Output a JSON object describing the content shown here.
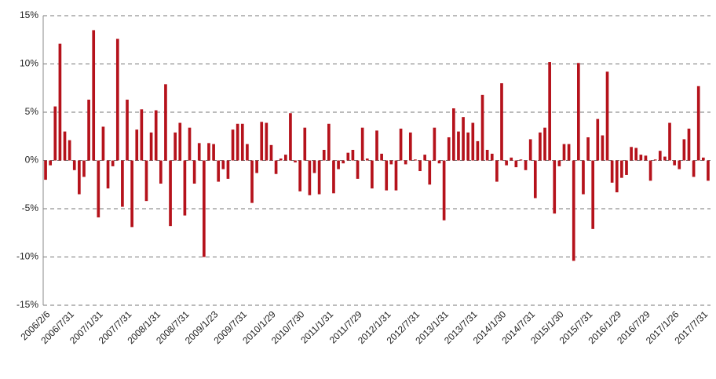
{
  "chart_data": {
    "type": "bar",
    "categories": [
      "2006/2/6",
      null,
      null,
      null,
      null,
      "2006/7/31",
      null,
      null,
      null,
      null,
      null,
      "2007/1/31",
      null,
      null,
      null,
      null,
      null,
      "2007/7/31",
      null,
      null,
      null,
      null,
      null,
      "2008/1/31",
      null,
      null,
      null,
      null,
      null,
      "2008/7/31",
      null,
      null,
      null,
      null,
      null,
      "2009/1/23",
      null,
      null,
      null,
      null,
      null,
      "2009/7/31",
      null,
      null,
      null,
      null,
      null,
      "2010/1/29",
      null,
      null,
      null,
      null,
      null,
      "2010/7/30",
      null,
      null,
      null,
      null,
      null,
      "2011/1/31",
      null,
      null,
      null,
      null,
      null,
      "2011/7/29",
      null,
      null,
      null,
      null,
      null,
      "2012/1/31",
      null,
      null,
      null,
      null,
      null,
      "2012/7/31",
      null,
      null,
      null,
      null,
      null,
      "2013/1/31",
      null,
      null,
      null,
      null,
      null,
      "2013/7/31",
      null,
      null,
      null,
      null,
      null,
      "2014/1/30",
      null,
      null,
      null,
      null,
      null,
      "2014/7/31",
      null,
      null,
      null,
      null,
      null,
      "2015/1/30",
      null,
      null,
      null,
      null,
      null,
      "2015/7/31",
      null,
      null,
      null,
      null,
      null,
      "2016/1/29",
      null,
      null,
      null,
      null,
      null,
      "2016/7/29",
      null,
      null,
      null,
      null,
      null,
      "2017/1/26",
      null,
      null,
      null,
      null,
      null,
      "2017/7/31",
      null
    ],
    "values": [
      -2.0,
      -0.5,
      5.6,
      12.1,
      3.0,
      2.1,
      -1.0,
      -3.5,
      -1.7,
      6.3,
      13.5,
      -5.9,
      3.5,
      -2.9,
      -0.6,
      12.6,
      -4.8,
      6.3,
      -6.9,
      3.2,
      5.3,
      -4.2,
      2.9,
      5.2,
      -2.4,
      7.9,
      -6.8,
      2.9,
      3.9,
      -5.7,
      3.4,
      -2.4,
      1.8,
      -10.0,
      1.8,
      1.7,
      -2.2,
      -0.9,
      -1.9,
      3.2,
      3.8,
      3.8,
      1.7,
      -4.4,
      -1.3,
      4.0,
      3.9,
      1.6,
      -1.4,
      0.2,
      0.6,
      4.9,
      -0.2,
      -3.2,
      3.4,
      -3.6,
      -1.3,
      -3.5,
      1.1,
      3.8,
      -3.4,
      -0.9,
      -0.3,
      0.8,
      1.1,
      -1.9,
      3.4,
      0.2,
      -2.9,
      3.1,
      0.7,
      -3.1,
      -0.4,
      -3.1,
      3.3,
      -0.4,
      2.9,
      0.1,
      -1.1,
      0.6,
      -2.5,
      3.4,
      -0.3,
      -6.2,
      2.4,
      5.4,
      3.0,
      4.5,
      2.9,
      3.9,
      2.0,
      6.8,
      1.1,
      0.7,
      -2.2,
      8.0,
      -0.5,
      0.3,
      -0.7,
      0.1,
      -1.0,
      2.2,
      -3.9,
      2.9,
      3.4,
      10.2,
      -5.5,
      -0.6,
      1.7,
      1.7,
      -10.4,
      10.1,
      -3.5,
      2.4,
      -7.1,
      4.3,
      2.6,
      9.2,
      -2.3,
      -3.3,
      -1.8,
      -1.5,
      1.4,
      1.3,
      0.6,
      0.5,
      -2.1,
      0.1,
      1.0,
      0.4,
      3.9,
      -0.5,
      -0.9,
      2.2,
      3.3,
      -1.7,
      7.7,
      0.3,
      -2.1
    ],
    "color": "#b5121b",
    "ylim": [
      -15,
      15
    ],
    "yticks": [
      {
        "value": -15,
        "label": "-15%"
      },
      {
        "value": -10,
        "label": "-10%"
      },
      {
        "value": -5,
        "label": "-5%"
      },
      {
        "value": 0,
        "label": "0%"
      },
      {
        "value": 5,
        "label": "5%"
      },
      {
        "value": 10,
        "label": "10%"
      },
      {
        "value": 15,
        "label": "15%"
      }
    ],
    "grid": true
  }
}
